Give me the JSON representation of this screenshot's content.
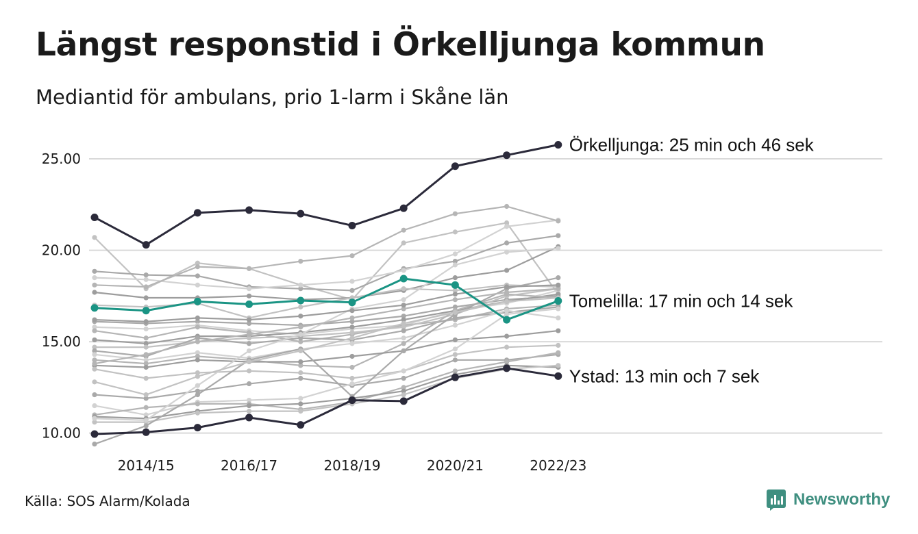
{
  "header": {
    "title": "Längst responstid i Örkelljunga kommun",
    "subtitle": "Mediantid för ambulans, prio 1-larm i Skåne län"
  },
  "footer": {
    "source": "Källa: SOS Alarm/Kolada",
    "brand": "Newsworthy",
    "brand_color": "#3f8f80"
  },
  "chart_data": {
    "type": "line",
    "title": "Längst responstid i Örkelljunga kommun",
    "subtitle": "Mediantid för ambulans, prio 1-larm i Skåne län",
    "xlabel": "",
    "ylabel": "",
    "x": [
      "2013/14",
      "2014/15",
      "2015/16",
      "2016/17",
      "2017/18",
      "2018/19",
      "2019/20",
      "2020/21",
      "2021/22",
      "2022/23"
    ],
    "x_tick_labels": [
      "2014/15",
      "2016/17",
      "2018/19",
      "2020/21",
      "2022/23"
    ],
    "y_ticks": [
      10,
      15,
      20,
      25
    ],
    "y_tick_labels": [
      "10.00",
      "15.00",
      "20.00",
      "25.00"
    ],
    "ylim": [
      9.2,
      26.5
    ],
    "grid": "horizontal",
    "legend": "none",
    "colors": {
      "highlight": "#2b2a3a",
      "accent": "#1a9484",
      "grid": "#d9d9d9"
    },
    "highlighted_series": [
      {
        "name": "Örkelljunga",
        "label": "Örkelljunga: 25 min och 46 sek",
        "color": "#2b2a3a",
        "values": [
          21.8,
          20.3,
          22.05,
          22.2,
          22.0,
          21.35,
          22.3,
          24.6,
          25.2,
          25.77
        ]
      },
      {
        "name": "Tomelilla",
        "label": "Tomelilla: 17 min och 14 sek",
        "color": "#1a9484",
        "values": [
          16.85,
          16.7,
          17.2,
          17.05,
          17.25,
          17.15,
          18.45,
          18.1,
          16.2,
          17.23
        ]
      },
      {
        "name": "Ystad",
        "label": "Ystad: 13 min och 7 sek",
        "color": "#2b2a3a",
        "values": [
          9.95,
          10.05,
          10.3,
          10.85,
          10.45,
          11.8,
          11.75,
          13.05,
          13.55,
          13.12
        ]
      }
    ],
    "background_series": [
      {
        "values": [
          20.7,
          17.9,
          19.3,
          19.0,
          18.1,
          17.3,
          20.4,
          21.0,
          21.5,
          17.6
        ]
      },
      {
        "values": [
          18.85,
          18.65,
          18.6,
          18.0,
          17.9,
          17.8,
          19.0,
          19.4,
          20.4,
          20.8
        ]
      },
      {
        "values": [
          18.5,
          18.4,
          18.1,
          17.9,
          18.1,
          18.3,
          18.9,
          19.8,
          21.3,
          21.65
        ]
      },
      {
        "values": [
          18.1,
          18.0,
          19.1,
          19.0,
          19.4,
          19.7,
          21.1,
          22.0,
          22.4,
          21.6
        ]
      },
      {
        "values": [
          17.7,
          17.4,
          17.4,
          17.5,
          17.3,
          17.4,
          17.8,
          18.5,
          18.9,
          20.2
        ]
      },
      {
        "values": [
          17.0,
          16.9,
          17.1,
          16.3,
          16.9,
          17.4,
          17.9,
          17.8,
          18.1,
          18.0
        ]
      },
      {
        "values": [
          16.1,
          16.0,
          16.1,
          16.0,
          15.9,
          16.1,
          16.4,
          16.9,
          17.3,
          17.5
        ]
      },
      {
        "values": [
          15.8,
          15.7,
          15.9,
          15.6,
          15.4,
          15.7,
          15.9,
          16.7,
          17.1,
          17.8
        ]
      },
      {
        "values": [
          15.6,
          15.2,
          15.8,
          15.5,
          15.0,
          15.4,
          15.9,
          16.2,
          16.8,
          17.0
        ]
      },
      {
        "values": [
          15.1,
          14.9,
          15.3,
          15.3,
          15.5,
          15.8,
          16.2,
          16.7,
          17.2,
          17.6
        ]
      },
      {
        "values": [
          14.7,
          14.7,
          15.0,
          15.2,
          15.3,
          15.5,
          15.8,
          16.5,
          17.5,
          17.9
        ]
      },
      {
        "values": [
          14.5,
          14.2,
          15.2,
          14.9,
          15.2,
          15.1,
          15.6,
          16.3,
          16.6,
          16.9
        ]
      },
      {
        "values": [
          14.3,
          14.0,
          14.4,
          14.1,
          14.6,
          14.9,
          15.2,
          15.9,
          16.7,
          16.3
        ]
      },
      {
        "values": [
          14.0,
          13.8,
          14.2,
          14.0,
          13.7,
          13.6,
          14.9,
          16.7,
          17.6,
          17.4
        ]
      },
      {
        "values": [
          13.7,
          13.6,
          14.0,
          13.9,
          13.9,
          14.2,
          14.5,
          15.1,
          15.3,
          15.6
        ]
      },
      {
        "values": [
          13.5,
          13.0,
          13.3,
          13.4,
          13.3,
          13.0,
          13.4,
          14.3,
          14.7,
          14.8
        ]
      },
      {
        "values": [
          12.1,
          11.9,
          12.3,
          12.7,
          13.0,
          12.6,
          13.0,
          14.0,
          14.0,
          14.3
        ]
      },
      {
        "values": [
          11.5,
          11.0,
          11.7,
          11.8,
          11.9,
          12.7,
          13.4,
          14.6,
          16.5,
          16.8
        ]
      },
      {
        "values": [
          11.0,
          11.4,
          11.6,
          11.6,
          11.3,
          11.7,
          12.5,
          13.4,
          13.9,
          14.4
        ]
      },
      {
        "values": [
          10.9,
          10.8,
          11.2,
          11.5,
          11.6,
          11.9,
          12.3,
          13.2,
          13.7,
          13.6
        ]
      },
      {
        "values": [
          10.6,
          10.6,
          11.1,
          11.2,
          11.2,
          11.6,
          12.1,
          13.0,
          13.5,
          13.7
        ]
      },
      {
        "values": [
          9.4,
          10.4,
          12.1,
          14.0,
          14.6,
          12.0,
          14.5,
          16.5,
          17.9,
          18.5
        ]
      },
      {
        "values": [
          10.8,
          10.7,
          12.6,
          14.5,
          15.4,
          16.8,
          17.3,
          19.2,
          19.9,
          20.1
        ]
      },
      {
        "values": [
          13.8,
          14.3,
          15.0,
          15.4,
          15.8,
          16.3,
          16.8,
          17.3,
          17.7,
          17.9
        ]
      },
      {
        "values": [
          16.2,
          16.1,
          16.3,
          16.2,
          16.4,
          16.7,
          17.0,
          17.6,
          18.0,
          18.1
        ]
      },
      {
        "values": [
          12.8,
          12.1,
          13.1,
          13.9,
          14.5,
          15.2,
          16.0,
          16.6,
          17.2,
          17.4
        ]
      }
    ]
  }
}
